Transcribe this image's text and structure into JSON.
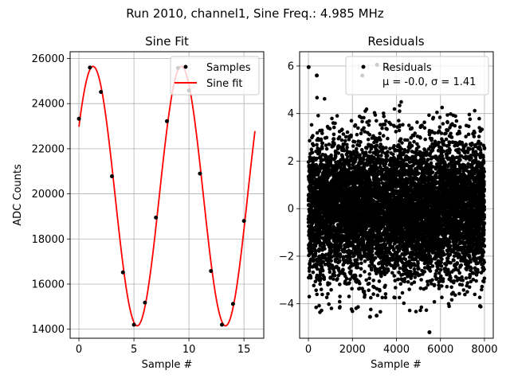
{
  "figure": {
    "suptitle": "Run 2010, channel1, Sine Freq.: 4.985 MHz"
  },
  "chart_data": [
    {
      "type": "line",
      "title": "Sine Fit",
      "xlabel": "Sample #",
      "ylabel": "ADC Counts",
      "xlim": [
        -0.8,
        16.8
      ],
      "ylim": [
        13600,
        26300
      ],
      "xticks": [
        0,
        5,
        10,
        15
      ],
      "yticks": [
        14000,
        16000,
        18000,
        20000,
        22000,
        24000,
        26000
      ],
      "xtick_labels": [
        "0",
        "5",
        "10",
        "15"
      ],
      "ytick_labels": [
        "14000",
        "16000",
        "18000",
        "20000",
        "22000",
        "24000",
        "26000"
      ],
      "grid": true,
      "legend_position": "top-right",
      "series": [
        {
          "name": "Samples",
          "kind": "scatter",
          "color": "#000000",
          "x": [
            0,
            1,
            2,
            3,
            4,
            5,
            6,
            7,
            8,
            9,
            10,
            11,
            12,
            13,
            14,
            15
          ],
          "y": [
            23330,
            25600,
            24520,
            20780,
            16520,
            14200,
            15180,
            18950,
            23220,
            25580,
            24580,
            20900,
            16580,
            14200,
            15120,
            18800
          ]
        },
        {
          "name": "Sine fit",
          "kind": "line",
          "color": "#ff0000",
          "model": {
            "offset": 19900,
            "amplitude": 5750,
            "period_samples": 8.025,
            "phase_sample": -0.72,
            "x_start": 0,
            "x_end": 16
          }
        }
      ]
    },
    {
      "type": "scatter",
      "title": "Residuals",
      "xlabel": "Sample #",
      "ylabel": "",
      "xlim": [
        -400,
        8400
      ],
      "ylim": [
        -5.45,
        6.6
      ],
      "xticks": [
        0,
        2000,
        4000,
        6000,
        8000
      ],
      "yticks": [
        -4,
        -2,
        0,
        2,
        4,
        6
      ],
      "xtick_labels": [
        "0",
        "2000",
        "4000",
        "6000",
        "8000"
      ],
      "ytick_labels": [
        "−4",
        "−2",
        "0",
        "2",
        "4",
        "6"
      ],
      "grid": true,
      "legend_position": "top-right",
      "series": [
        {
          "name": "Residuals",
          "legend_label_line1": "Residuals",
          "legend_label_line2": "μ = -0.0, σ = 1.41",
          "color": "#000000",
          "distribution": {
            "n": 8000,
            "mean": 0.0,
            "std": 1.41,
            "x_range": [
              0,
              8000
            ]
          },
          "outliers": [
            {
              "x": 10,
              "y": 5.95
            },
            {
              "x": 380,
              "y": 5.6
            },
            {
              "x": 3120,
              "y": 6.05
            },
            {
              "x": 2450,
              "y": 5.6
            },
            {
              "x": 3600,
              "y": 5.9
            },
            {
              "x": 5500,
              "y": -5.2
            },
            {
              "x": 2800,
              "y": -4.55
            },
            {
              "x": 3100,
              "y": -4.5
            },
            {
              "x": 7800,
              "y": -4.1
            }
          ]
        }
      ]
    }
  ]
}
